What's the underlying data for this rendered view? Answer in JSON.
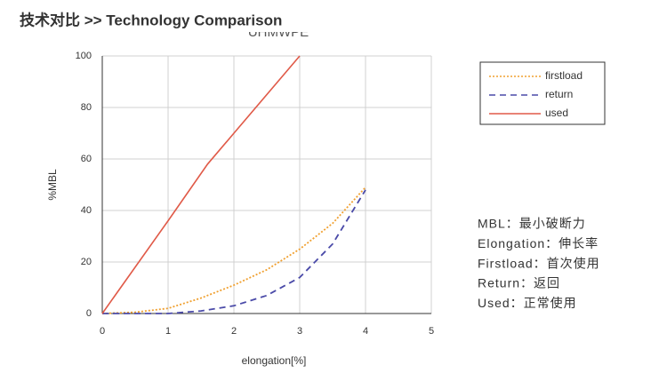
{
  "header": {
    "title": "技术对比  >>  Technology Comparison"
  },
  "chart_data": {
    "type": "line",
    "title": "UHMWPE",
    "xlabel": "elongation[%]",
    "ylabel": "%MBL",
    "xlim": [
      0,
      5
    ],
    "xticks": [
      0,
      1,
      2,
      3,
      4,
      5
    ],
    "ylim": [
      0,
      100
    ],
    "yticks": [
      0,
      20,
      40,
      60,
      80,
      100
    ],
    "grid": true,
    "legend": "right",
    "series": [
      {
        "name": "firstload",
        "color": "#f0a030",
        "style": "dotted",
        "x": [
          0,
          0.5,
          1,
          1.5,
          2,
          2.5,
          3,
          3.5,
          4
        ],
        "values": [
          0,
          0.5,
          2,
          6,
          11,
          17,
          25,
          35,
          49
        ]
      },
      {
        "name": "return",
        "color": "#4a4aa8",
        "style": "dashed",
        "x": [
          0,
          1,
          1.5,
          2,
          2.5,
          3,
          3.5,
          4
        ],
        "values": [
          0,
          0,
          1,
          3,
          7,
          14,
          27,
          48
        ]
      },
      {
        "name": "used",
        "color": "#e05a48",
        "style": "solid",
        "x": [
          0,
          1,
          1.6,
          2,
          3
        ],
        "values": [
          0,
          36,
          58,
          70,
          100
        ]
      }
    ],
    "annotations": [
      "MBL：最小破断力",
      "Elongation：伸长率",
      "Firstload：首次使用",
      "Return：返回",
      "Used：正常使用"
    ]
  }
}
